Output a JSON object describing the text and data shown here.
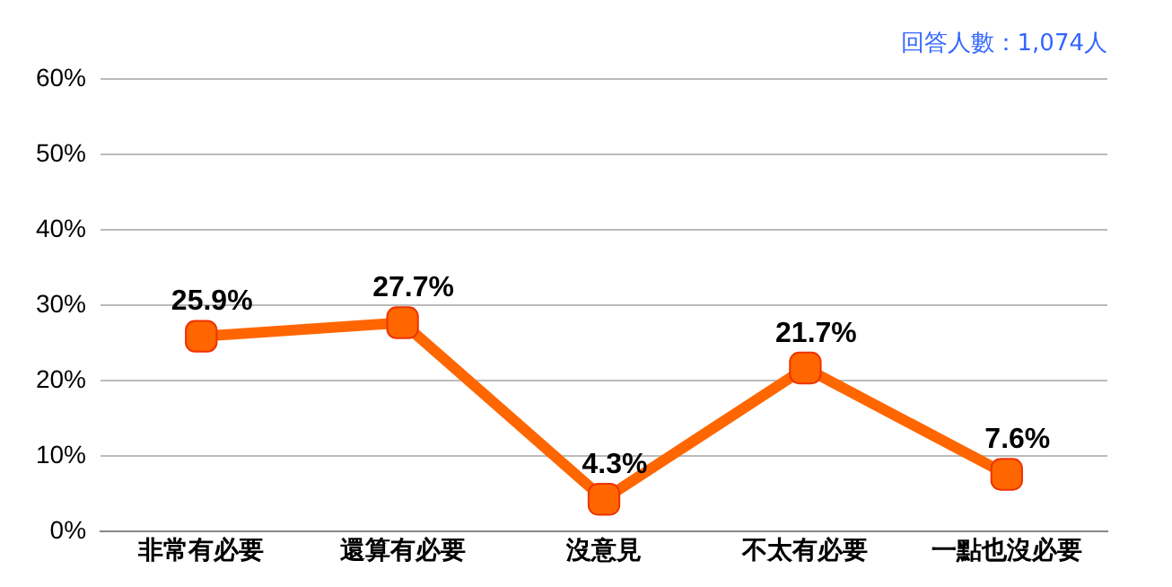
{
  "chart_data": {
    "type": "line",
    "categories": [
      "非常有必要",
      "還算有必要",
      "沒意見",
      "不太有必要",
      "一點也沒必要"
    ],
    "series": [
      {
        "color": "#ff6600",
        "values": [
          25.9,
          27.7,
          4.3,
          21.7,
          7.6
        ],
        "value_labels": [
          "25.9%",
          "27.7%",
          "4.3%",
          "21.7%",
          "7.6%"
        ]
      }
    ],
    "ylim": [
      0,
      60
    ],
    "yticks": [
      {
        "value": 0,
        "label": "0%"
      },
      {
        "value": 10,
        "label": "10%"
      },
      {
        "value": 20,
        "label": "20%"
      },
      {
        "value": 30,
        "label": "30%"
      },
      {
        "value": 40,
        "label": "40%"
      },
      {
        "value": 50,
        "label": "50%"
      },
      {
        "value": 60,
        "label": "60%"
      }
    ],
    "grid": "y",
    "marker": "square",
    "line_style": "solid",
    "legend": false,
    "annotations": [
      "回答人數：1,074人"
    ]
  }
}
